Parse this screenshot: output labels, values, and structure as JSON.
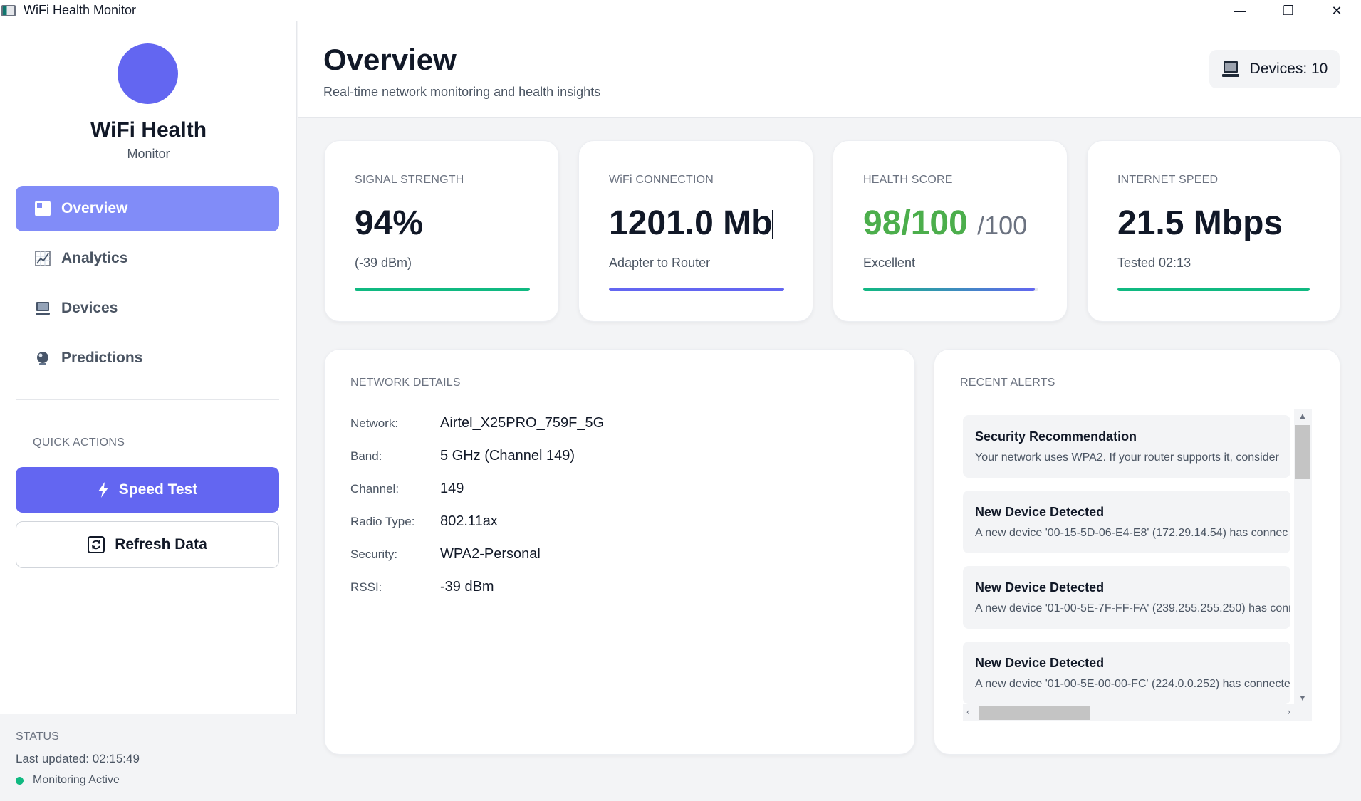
{
  "window": {
    "title": "WiFi Health Monitor",
    "controls": {
      "minimize": "—",
      "restore": "❐",
      "close": "✕"
    }
  },
  "sidebar": {
    "brand_title": "WiFi Health",
    "brand_sub": "Monitor",
    "nav": [
      {
        "label": "Overview",
        "icon": "overview-icon",
        "active": true
      },
      {
        "label": "Analytics",
        "icon": "analytics-icon",
        "active": false
      },
      {
        "label": "Devices",
        "icon": "devices-icon",
        "active": false
      },
      {
        "label": "Predictions",
        "icon": "predictions-icon",
        "active": false
      }
    ],
    "quick_actions_label": "QUICK ACTIONS",
    "speed_test_label": "Speed Test",
    "refresh_label": "Refresh Data",
    "status": {
      "label": "STATUS",
      "last_updated": "Last updated: 02:15:49",
      "monitoring": "Monitoring Active",
      "indicator_color": "#10b981"
    }
  },
  "header": {
    "title": "Overview",
    "subtitle": "Real-time network monitoring and health insights",
    "devices_badge": "Devices: 10"
  },
  "metrics": [
    {
      "label": "SIGNAL STRENGTH",
      "value": "94%",
      "suffix": "",
      "sub": "(-39 dBm)",
      "progress": 1.0,
      "bar_color": "#10b981"
    },
    {
      "label": "WiFi CONNECTION",
      "value": "1201.0 Mb",
      "suffix": "",
      "sub": "Adapter to Router",
      "progress": 1.0,
      "bar_color": "#6366f1"
    },
    {
      "label": "HEALTH SCORE",
      "value": "98/100",
      "suffix": "/100",
      "sub": "Excellent",
      "progress": 0.98,
      "bar_color": "linear-gradient(90deg,#10b981,#6366f1)"
    },
    {
      "label": "INTERNET SPEED",
      "value": "21.5 Mbps",
      "suffix": "",
      "sub": "Tested 02:13",
      "progress": 1.0,
      "bar_color": "#10b981"
    }
  ],
  "network_details": {
    "label": "NETWORK DETAILS",
    "rows": [
      {
        "key": "Network:",
        "value": "Airtel_X25PRO_759F_5G"
      },
      {
        "key": "Band:",
        "value": "5 GHz (Channel 149)"
      },
      {
        "key": "Channel:",
        "value": "149"
      },
      {
        "key": "Radio Type:",
        "value": "802.11ax"
      },
      {
        "key": "Security:",
        "value": "WPA2-Personal"
      },
      {
        "key": "RSSI:",
        "value": "-39 dBm"
      }
    ]
  },
  "alerts": {
    "label": "RECENT ALERTS",
    "items": [
      {
        "title": "Security Recommendation",
        "message": "Your network uses WPA2. If your router supports it, consider"
      },
      {
        "title": "New Device Detected",
        "message": "A new device '00-15-5D-06-E4-E8' (172.29.14.54) has connec"
      },
      {
        "title": "New Device Detected",
        "message": "A new device '01-00-5E-7F-FF-FA' (239.255.255.250) has conn"
      },
      {
        "title": "New Device Detected",
        "message": "A new device '01-00-5E-00-00-FC' (224.0.0.252) has connecte"
      }
    ]
  }
}
